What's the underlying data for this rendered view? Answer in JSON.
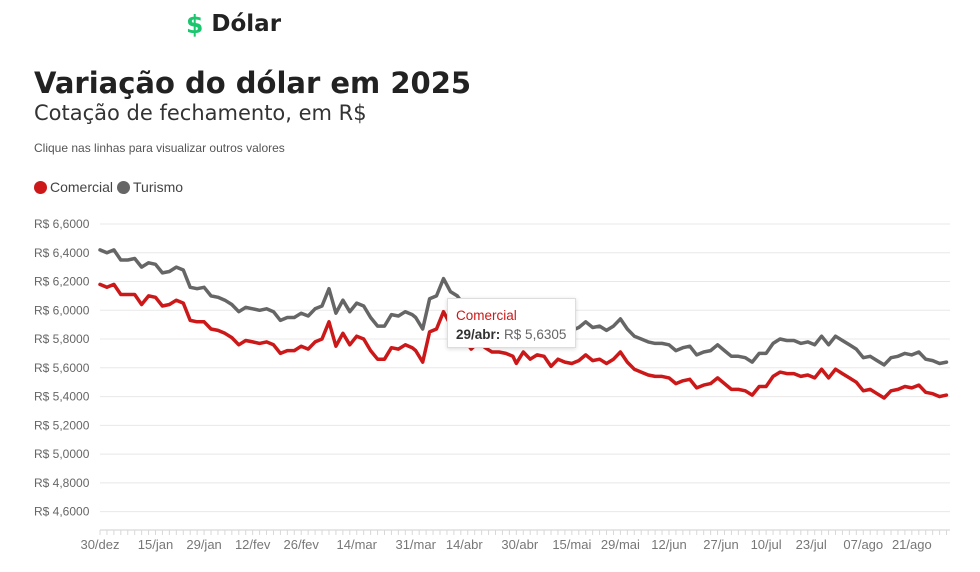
{
  "brand": {
    "icon": "dollar-icon",
    "icon_glyph": "$",
    "name": "Dólar",
    "color": "#1cc66f"
  },
  "header": {
    "title": "Variação do dólar em 2025",
    "subtitle": "Cotação de fechamento, em R$",
    "hint": "Clique nas linhas para visualizar outros valores"
  },
  "legend": [
    {
      "label": "Comercial",
      "color": "#cc1818"
    },
    {
      "label": "Turismo",
      "color": "#666666"
    }
  ],
  "tooltip": {
    "series": "Comercial",
    "date": "29/abr:",
    "value": "R$ 5,6305"
  },
  "chart_data": {
    "type": "line",
    "ylim": [
      4.5,
      6.6
    ],
    "yticks": [
      4.6,
      4.8,
      5.0,
      5.2,
      5.4,
      5.6,
      5.8,
      6.0,
      6.2,
      6.4,
      6.6
    ],
    "ytick_labels": [
      "R$ 4,6000",
      "R$ 4,8000",
      "R$ 5,0000",
      "R$ 5,2000",
      "R$ 5,4000",
      "R$ 5,6000",
      "R$ 5,8000",
      "R$ 6,0000",
      "R$ 6,2000",
      "R$ 6,4000",
      "R$ 6,6000"
    ],
    "x_range": [
      "2024-12-30",
      "2025-09-01"
    ],
    "xtick_dates": [
      "2024-12-30",
      "2025-01-15",
      "2025-01-29",
      "2025-02-12",
      "2025-02-26",
      "2025-03-14",
      "2025-03-31",
      "2025-04-14",
      "2025-04-30",
      "2025-05-15",
      "2025-05-29",
      "2025-06-12",
      "2025-06-27",
      "2025-07-10",
      "2025-07-23",
      "2025-08-07",
      "2025-08-21"
    ],
    "xtick_labels": [
      "30/dez",
      "15/jan",
      "29/jan",
      "12/fev",
      "26/fev",
      "14/mar",
      "31/mar",
      "14/abr",
      "30/abr",
      "15/mai",
      "29/mai",
      "12/jun",
      "27/jun",
      "10/jul",
      "23/jul",
      "07/ago",
      "21/ago"
    ],
    "grid": true,
    "legend_position": "top-left",
    "highlight": {
      "series": "Comercial",
      "date": "2025-04-29",
      "value": 5.6305
    },
    "series": [
      {
        "name": "Comercial",
        "color": "#cc1818",
        "points": [
          [
            "2024-12-30",
            6.18
          ],
          [
            "2025-01-01",
            6.16
          ],
          [
            "2025-01-03",
            6.18
          ],
          [
            "2025-01-05",
            6.11
          ],
          [
            "2025-01-07",
            6.11
          ],
          [
            "2025-01-09",
            6.11
          ],
          [
            "2025-01-11",
            6.04
          ],
          [
            "2025-01-13",
            6.1
          ],
          [
            "2025-01-15",
            6.09
          ],
          [
            "2025-01-17",
            6.03
          ],
          [
            "2025-01-19",
            6.04
          ],
          [
            "2025-01-21",
            6.07
          ],
          [
            "2025-01-23",
            6.05
          ],
          [
            "2025-01-25",
            5.93
          ],
          [
            "2025-01-27",
            5.92
          ],
          [
            "2025-01-29",
            5.92
          ],
          [
            "2025-01-31",
            5.87
          ],
          [
            "2025-02-02",
            5.86
          ],
          [
            "2025-02-04",
            5.84
          ],
          [
            "2025-02-06",
            5.81
          ],
          [
            "2025-02-08",
            5.76
          ],
          [
            "2025-02-10",
            5.79
          ],
          [
            "2025-02-12",
            5.78
          ],
          [
            "2025-02-14",
            5.77
          ],
          [
            "2025-02-16",
            5.78
          ],
          [
            "2025-02-18",
            5.76
          ],
          [
            "2025-02-20",
            5.7
          ],
          [
            "2025-02-22",
            5.72
          ],
          [
            "2025-02-24",
            5.72
          ],
          [
            "2025-02-26",
            5.75
          ],
          [
            "2025-02-28",
            5.73
          ],
          [
            "2025-03-02",
            5.78
          ],
          [
            "2025-03-04",
            5.8
          ],
          [
            "2025-03-06",
            5.92
          ],
          [
            "2025-03-08",
            5.75
          ],
          [
            "2025-03-10",
            5.84
          ],
          [
            "2025-03-12",
            5.76
          ],
          [
            "2025-03-14",
            5.82
          ],
          [
            "2025-03-16",
            5.8
          ],
          [
            "2025-03-18",
            5.72
          ],
          [
            "2025-03-20",
            5.66
          ],
          [
            "2025-03-22",
            5.66
          ],
          [
            "2025-03-24",
            5.74
          ],
          [
            "2025-03-26",
            5.73
          ],
          [
            "2025-03-28",
            5.76
          ],
          [
            "2025-03-30",
            5.74
          ],
          [
            "2025-03-31",
            5.72
          ],
          [
            "2025-04-02",
            5.64
          ],
          [
            "2025-04-04",
            5.85
          ],
          [
            "2025-04-06",
            5.87
          ],
          [
            "2025-04-08",
            5.99
          ],
          [
            "2025-04-10",
            5.9
          ],
          [
            "2025-04-12",
            5.87
          ],
          [
            "2025-04-14",
            5.8
          ],
          [
            "2025-04-16",
            5.73
          ],
          [
            "2025-04-18",
            5.78
          ],
          [
            "2025-04-20",
            5.74
          ],
          [
            "2025-04-22",
            5.71
          ],
          [
            "2025-04-24",
            5.71
          ],
          [
            "2025-04-26",
            5.7
          ],
          [
            "2025-04-28",
            5.68
          ],
          [
            "2025-04-29",
            5.6305
          ],
          [
            "2025-05-01",
            5.71
          ],
          [
            "2025-05-03",
            5.66
          ],
          [
            "2025-05-05",
            5.69
          ],
          [
            "2025-05-07",
            5.68
          ],
          [
            "2025-05-09",
            5.61
          ],
          [
            "2025-05-11",
            5.66
          ],
          [
            "2025-05-13",
            5.64
          ],
          [
            "2025-05-15",
            5.63
          ],
          [
            "2025-05-17",
            5.65
          ],
          [
            "2025-05-19",
            5.69
          ],
          [
            "2025-05-21",
            5.65
          ],
          [
            "2025-05-23",
            5.66
          ],
          [
            "2025-05-25",
            5.63
          ],
          [
            "2025-05-27",
            5.66
          ],
          [
            "2025-05-29",
            5.71
          ],
          [
            "2025-05-31",
            5.64
          ],
          [
            "2025-06-02",
            5.59
          ],
          [
            "2025-06-04",
            5.57
          ],
          [
            "2025-06-06",
            5.55
          ],
          [
            "2025-06-08",
            5.54
          ],
          [
            "2025-06-10",
            5.54
          ],
          [
            "2025-06-12",
            5.53
          ],
          [
            "2025-06-14",
            5.49
          ],
          [
            "2025-06-16",
            5.51
          ],
          [
            "2025-06-18",
            5.52
          ],
          [
            "2025-06-20",
            5.46
          ],
          [
            "2025-06-22",
            5.48
          ],
          [
            "2025-06-24",
            5.49
          ],
          [
            "2025-06-26",
            5.53
          ],
          [
            "2025-06-28",
            5.49
          ],
          [
            "2025-06-30",
            5.45
          ],
          [
            "2025-07-02",
            5.45
          ],
          [
            "2025-07-04",
            5.44
          ],
          [
            "2025-07-06",
            5.41
          ],
          [
            "2025-07-08",
            5.47
          ],
          [
            "2025-07-10",
            5.47
          ],
          [
            "2025-07-12",
            5.54
          ],
          [
            "2025-07-14",
            5.57
          ],
          [
            "2025-07-16",
            5.56
          ],
          [
            "2025-07-18",
            5.56
          ],
          [
            "2025-07-20",
            5.54
          ],
          [
            "2025-07-22",
            5.55
          ],
          [
            "2025-07-24",
            5.53
          ],
          [
            "2025-07-26",
            5.59
          ],
          [
            "2025-07-28",
            5.53
          ],
          [
            "2025-07-30",
            5.59
          ],
          [
            "2025-08-01",
            5.56
          ],
          [
            "2025-08-03",
            5.53
          ],
          [
            "2025-08-05",
            5.5
          ],
          [
            "2025-08-07",
            5.44
          ],
          [
            "2025-08-09",
            5.45
          ],
          [
            "2025-08-11",
            5.42
          ],
          [
            "2025-08-13",
            5.39
          ],
          [
            "2025-08-15",
            5.44
          ],
          [
            "2025-08-17",
            5.45
          ],
          [
            "2025-08-19",
            5.47
          ],
          [
            "2025-08-21",
            5.46
          ],
          [
            "2025-08-23",
            5.48
          ],
          [
            "2025-08-25",
            5.43
          ],
          [
            "2025-08-27",
            5.42
          ],
          [
            "2025-08-29",
            5.4
          ],
          [
            "2025-08-31",
            5.41
          ]
        ]
      },
      {
        "name": "Turismo",
        "color": "#666666",
        "points": [
          [
            "2024-12-30",
            6.42
          ],
          [
            "2025-01-01",
            6.4
          ],
          [
            "2025-01-03",
            6.42
          ],
          [
            "2025-01-05",
            6.35
          ],
          [
            "2025-01-07",
            6.35
          ],
          [
            "2025-01-09",
            6.36
          ],
          [
            "2025-01-11",
            6.3
          ],
          [
            "2025-01-13",
            6.33
          ],
          [
            "2025-01-15",
            6.32
          ],
          [
            "2025-01-17",
            6.26
          ],
          [
            "2025-01-19",
            6.27
          ],
          [
            "2025-01-21",
            6.3
          ],
          [
            "2025-01-23",
            6.28
          ],
          [
            "2025-01-25",
            6.16
          ],
          [
            "2025-01-27",
            6.15
          ],
          [
            "2025-01-29",
            6.16
          ],
          [
            "2025-01-31",
            6.1
          ],
          [
            "2025-02-02",
            6.09
          ],
          [
            "2025-02-04",
            6.07
          ],
          [
            "2025-02-06",
            6.04
          ],
          [
            "2025-02-08",
            5.99
          ],
          [
            "2025-02-10",
            6.02
          ],
          [
            "2025-02-12",
            6.01
          ],
          [
            "2025-02-14",
            6.0
          ],
          [
            "2025-02-16",
            6.01
          ],
          [
            "2025-02-18",
            5.99
          ],
          [
            "2025-02-20",
            5.93
          ],
          [
            "2025-02-22",
            5.95
          ],
          [
            "2025-02-24",
            5.95
          ],
          [
            "2025-02-26",
            5.98
          ],
          [
            "2025-02-28",
            5.96
          ],
          [
            "2025-03-02",
            6.01
          ],
          [
            "2025-03-04",
            6.03
          ],
          [
            "2025-03-06",
            6.15
          ],
          [
            "2025-03-08",
            5.98
          ],
          [
            "2025-03-10",
            6.07
          ],
          [
            "2025-03-12",
            5.99
          ],
          [
            "2025-03-14",
            6.05
          ],
          [
            "2025-03-16",
            6.03
          ],
          [
            "2025-03-18",
            5.95
          ],
          [
            "2025-03-20",
            5.89
          ],
          [
            "2025-03-22",
            5.89
          ],
          [
            "2025-03-24",
            5.97
          ],
          [
            "2025-03-26",
            5.96
          ],
          [
            "2025-03-28",
            5.99
          ],
          [
            "2025-03-30",
            5.97
          ],
          [
            "2025-03-31",
            5.95
          ],
          [
            "2025-04-02",
            5.87
          ],
          [
            "2025-04-04",
            6.08
          ],
          [
            "2025-04-06",
            6.1
          ],
          [
            "2025-04-08",
            6.22
          ],
          [
            "2025-04-10",
            6.13
          ],
          [
            "2025-04-12",
            6.1
          ],
          [
            "2025-04-14",
            6.03
          ],
          [
            "2025-04-16",
            5.96
          ],
          [
            "2025-04-18",
            6.01
          ],
          [
            "2025-04-20",
            5.97
          ],
          [
            "2025-04-22",
            5.94
          ],
          [
            "2025-04-24",
            5.94
          ],
          [
            "2025-04-26",
            5.93
          ],
          [
            "2025-04-28",
            5.91
          ],
          [
            "2025-04-29",
            5.86
          ],
          [
            "2025-05-01",
            5.94
          ],
          [
            "2025-05-03",
            5.89
          ],
          [
            "2025-05-05",
            5.92
          ],
          [
            "2025-05-07",
            5.91
          ],
          [
            "2025-05-09",
            5.84
          ],
          [
            "2025-05-11",
            5.89
          ],
          [
            "2025-05-13",
            5.87
          ],
          [
            "2025-05-15",
            5.86
          ],
          [
            "2025-05-17",
            5.88
          ],
          [
            "2025-05-19",
            5.92
          ],
          [
            "2025-05-21",
            5.88
          ],
          [
            "2025-05-23",
            5.89
          ],
          [
            "2025-05-25",
            5.86
          ],
          [
            "2025-05-27",
            5.89
          ],
          [
            "2025-05-29",
            5.94
          ],
          [
            "2025-05-31",
            5.87
          ],
          [
            "2025-06-02",
            5.82
          ],
          [
            "2025-06-04",
            5.8
          ],
          [
            "2025-06-06",
            5.78
          ],
          [
            "2025-06-08",
            5.77
          ],
          [
            "2025-06-10",
            5.77
          ],
          [
            "2025-06-12",
            5.76
          ],
          [
            "2025-06-14",
            5.72
          ],
          [
            "2025-06-16",
            5.74
          ],
          [
            "2025-06-18",
            5.75
          ],
          [
            "2025-06-20",
            5.69
          ],
          [
            "2025-06-22",
            5.71
          ],
          [
            "2025-06-24",
            5.72
          ],
          [
            "2025-06-26",
            5.76
          ],
          [
            "2025-06-28",
            5.72
          ],
          [
            "2025-06-30",
            5.68
          ],
          [
            "2025-07-02",
            5.68
          ],
          [
            "2025-07-04",
            5.67
          ],
          [
            "2025-07-06",
            5.64
          ],
          [
            "2025-07-08",
            5.7
          ],
          [
            "2025-07-10",
            5.7
          ],
          [
            "2025-07-12",
            5.77
          ],
          [
            "2025-07-14",
            5.8
          ],
          [
            "2025-07-16",
            5.79
          ],
          [
            "2025-07-18",
            5.79
          ],
          [
            "2025-07-20",
            5.77
          ],
          [
            "2025-07-22",
            5.78
          ],
          [
            "2025-07-24",
            5.76
          ],
          [
            "2025-07-26",
            5.82
          ],
          [
            "2025-07-28",
            5.76
          ],
          [
            "2025-07-30",
            5.82
          ],
          [
            "2025-08-01",
            5.79
          ],
          [
            "2025-08-03",
            5.76
          ],
          [
            "2025-08-05",
            5.73
          ],
          [
            "2025-08-07",
            5.67
          ],
          [
            "2025-08-09",
            5.68
          ],
          [
            "2025-08-11",
            5.65
          ],
          [
            "2025-08-13",
            5.62
          ],
          [
            "2025-08-15",
            5.67
          ],
          [
            "2025-08-17",
            5.68
          ],
          [
            "2025-08-19",
            5.7
          ],
          [
            "2025-08-21",
            5.69
          ],
          [
            "2025-08-23",
            5.71
          ],
          [
            "2025-08-25",
            5.66
          ],
          [
            "2025-08-27",
            5.65
          ],
          [
            "2025-08-29",
            5.63
          ],
          [
            "2025-08-31",
            5.64
          ]
        ]
      }
    ]
  }
}
